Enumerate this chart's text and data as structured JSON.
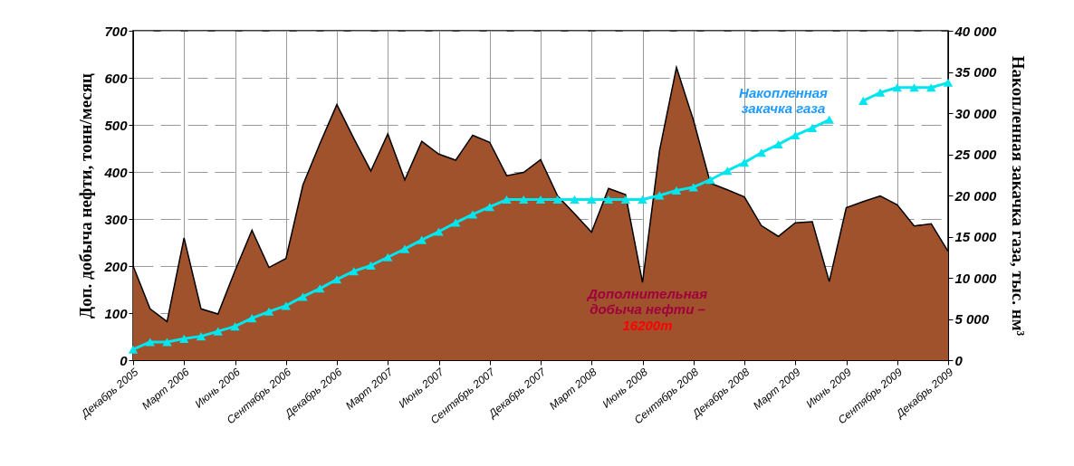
{
  "chart_data": {
    "type": "area",
    "categories": [
      "Декабрь 2005",
      null,
      null,
      "Март 2006",
      null,
      null,
      "Июнь 2006",
      null,
      null,
      "Сентябрь 2006",
      null,
      null,
      "Декабрь 2006",
      null,
      null,
      "Март 2007",
      null,
      null,
      "Июнь 2007",
      null,
      null,
      "Сентябрь 2007",
      null,
      null,
      "Декабрь 2007",
      null,
      null,
      "Март 2008",
      null,
      null,
      "Июнь 2008",
      null,
      null,
      "Сентябрь 2008",
      null,
      null,
      "Декабрь 2008",
      null,
      null,
      "Март 2009",
      null,
      null,
      "Июнь 2009",
      null,
      null,
      "Сентябрь 2009",
      null,
      null,
      "Декабрь 2009"
    ],
    "ylabel": "Доп. добыча нефти, тонн/месяц",
    "y2label": "Накопленная закачка газа, тыс. нм³",
    "ylim": [
      0,
      700
    ],
    "yticks": [
      0,
      100,
      200,
      300,
      400,
      500,
      600,
      700
    ],
    "y2lim": [
      0,
      40000
    ],
    "y2ticks": [
      0,
      {
        "value": 5000,
        "label": "5 000"
      },
      {
        "value": 10000,
        "label": "10 000"
      },
      {
        "value": 15000,
        "label": "15 000"
      },
      {
        "value": 20000,
        "label": "20 000"
      },
      {
        "value": 25000,
        "label": "25 000"
      },
      {
        "value": 30000,
        "label": "30 000"
      },
      {
        "value": 35000,
        "label": "35 000"
      },
      {
        "value": 40000,
        "label": "40 000"
      }
    ],
    "series": [
      {
        "name": "Дополнительная добыча нефти –",
        "color": "#a0522d",
        "values": [
          200,
          109,
          82,
          260,
          109,
          98,
          190,
          276,
          197,
          216,
          372,
          460,
          543,
          471,
          402,
          481,
          383,
          465,
          438,
          425,
          478,
          463,
          392,
          399,
          426,
          349,
          311,
          272,
          365,
          352,
          165,
          445,
          622,
          510,
          376,
          362,
          347,
          286,
          263,
          292,
          294,
          167,
          324,
          337,
          349,
          330,
          285,
          290,
          231
        ]
      },
      {
        "name": "Накопленная закачка газа",
        "type": "line",
        "axis": "y2",
        "color": "#00e5ee",
        "marker": "triangle",
        "values": [
          1300,
          2200,
          2200,
          2600,
          2900,
          3500,
          4100,
          5100,
          5900,
          6600,
          7700,
          8700,
          9800,
          10800,
          11500,
          12500,
          13500,
          14600,
          15600,
          16700,
          17700,
          18600,
          19500,
          19500,
          19500,
          19500,
          19500,
          19500,
          19500,
          19500,
          19500,
          20000,
          20600,
          21000,
          21900,
          23000,
          24000,
          25200,
          26200,
          27300,
          28200,
          29200,
          null,
          31500,
          32500,
          33100,
          33100,
          33100,
          33700
        ]
      }
    ],
    "annotations": [
      "16200т"
    ],
    "grid": true
  }
}
